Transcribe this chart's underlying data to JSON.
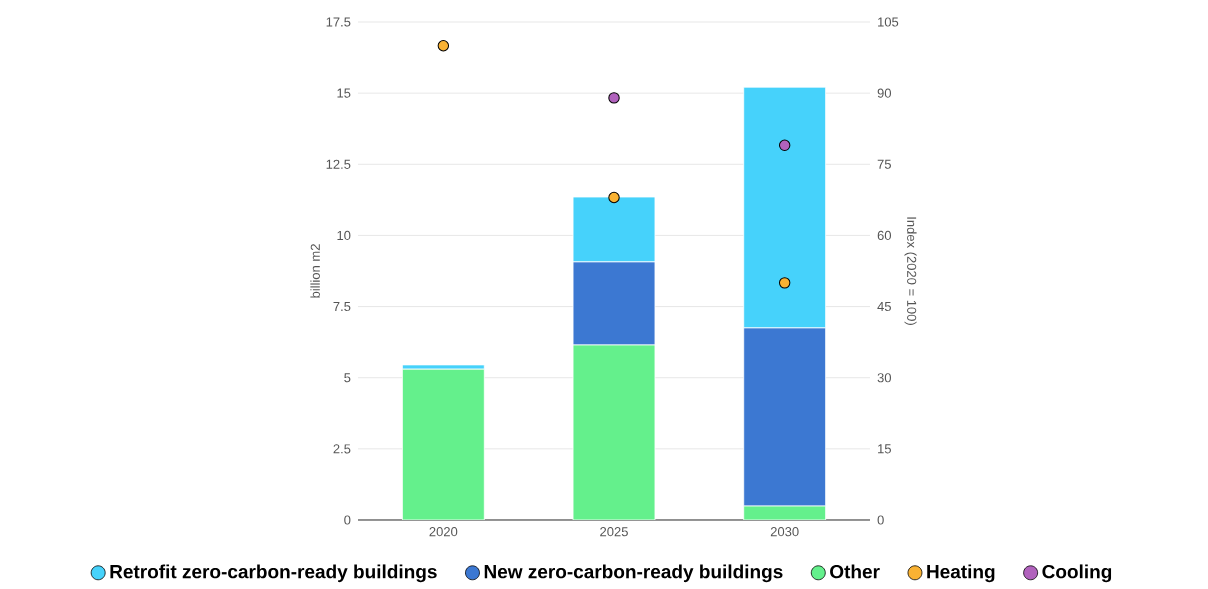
{
  "chart_data": {
    "type": "bar",
    "stacked": true,
    "categories": [
      "2020",
      "2025",
      "2030"
    ],
    "ylabel": "billion m2",
    "y2label": "Index (2020 = 100)",
    "ylim": [
      0,
      17.5
    ],
    "yticks": [
      0,
      2.5,
      5,
      7.5,
      10,
      12.5,
      15,
      17.5
    ],
    "y2lim": [
      0,
      105
    ],
    "y2ticks": [
      0,
      15,
      30,
      45,
      60,
      75,
      90,
      105
    ],
    "grid": "y",
    "legend": "bottom",
    "series": [
      {
        "name": "Other",
        "color": "#64f08c",
        "values": [
          5.3,
          6.15,
          0.49
        ]
      },
      {
        "name": "New zero-carbon-ready buildings",
        "color": "#3c78d2",
        "values": [
          0,
          2.92,
          6.26
        ]
      },
      {
        "name": "Retrofit zero-carbon-ready buildings",
        "color": "#46d2fb",
        "values": [
          0.15,
          2.28,
          8.46
        ]
      },
      {
        "name": "Heating",
        "type": "scatter",
        "axis": "y2",
        "marker": "circle",
        "color": "#f9b233",
        "values": [
          100,
          68,
          50
        ]
      },
      {
        "name": "Cooling",
        "type": "scatter",
        "axis": "y2",
        "marker": "circle",
        "color": "#b162bd",
        "values": [
          null,
          89,
          79
        ]
      }
    ]
  }
}
